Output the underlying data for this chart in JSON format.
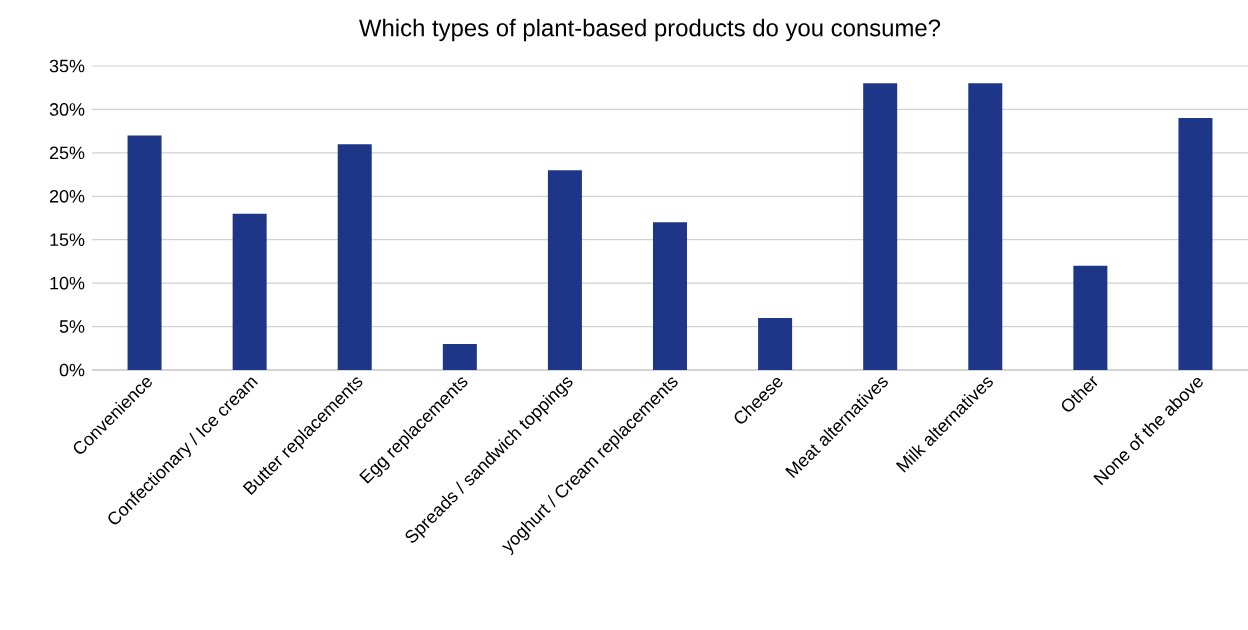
{
  "chart_data": {
    "type": "bar",
    "title": "Which types of plant-based products do you consume?",
    "categories": [
      "Convenience",
      "Confectionary / Ice cream",
      "Butter replacements",
      "Egg replacements",
      "Spreads / sandwich toppings",
      "yoghurt / Cream replacements",
      "Cheese",
      "Meat alternatives",
      "Milk alternatives",
      "Other",
      "None of the above"
    ],
    "values": [
      27,
      18,
      26,
      3,
      23,
      17,
      6,
      33,
      33,
      12,
      29
    ],
    "color": "#1d3687",
    "ylim": [
      0,
      35
    ],
    "yticks": [
      {
        "value": 0,
        "label": "0%"
      },
      {
        "value": 5,
        "label": "5%"
      },
      {
        "value": 10,
        "label": "10%"
      },
      {
        "value": 15,
        "label": "15%"
      },
      {
        "value": 20,
        "label": "20%"
      },
      {
        "value": 25,
        "label": "25%"
      },
      {
        "value": 30,
        "label": "30%"
      },
      {
        "value": 35,
        "label": "35%"
      }
    ],
    "grid": "y"
  }
}
